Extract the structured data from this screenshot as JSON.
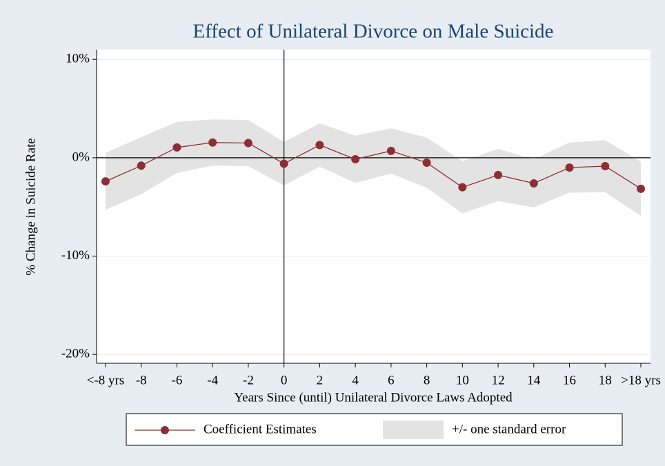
{
  "chart_data": {
    "type": "line",
    "title": "Effect of Unilateral Divorce on Male Suicide",
    "x_label": "Years Since (until) Unilateral Divorce Laws Adopted",
    "y_label": "% Change in Suicide Rate",
    "categories": [
      "<-8 yrs",
      "-8",
      "-6",
      "-4",
      "-2",
      "0",
      "2",
      "4",
      "6",
      "8",
      "10",
      "12",
      "14",
      "16",
      "18",
      ">18 yrs"
    ],
    "series": [
      {
        "name": "Coefficient Estimates",
        "color": "#8f2d36",
        "values": [
          -2.4,
          -0.8,
          1.05,
          1.55,
          1.5,
          -0.6,
          1.3,
          -0.15,
          0.7,
          -0.5,
          -3.0,
          -1.75,
          -2.6,
          -1.0,
          -0.85,
          -3.15
        ]
      },
      {
        "name": "+/- one standard error",
        "type": "band",
        "color": "#e3e3e3",
        "upper": [
          0.5,
          2.1,
          3.65,
          3.9,
          3.85,
          1.6,
          3.5,
          2.25,
          3.0,
          2.05,
          -0.35,
          0.9,
          -0.15,
          1.55,
          1.8,
          -0.4
        ],
        "lower": [
          -5.3,
          -3.7,
          -1.55,
          -0.8,
          -0.85,
          -2.8,
          -0.9,
          -2.55,
          -1.6,
          -3.05,
          -5.65,
          -4.4,
          -5.05,
          -3.55,
          -3.5,
          -5.9
        ]
      }
    ],
    "ylim": [
      -20.9,
      11
    ],
    "yticks": [
      {
        "value": 10,
        "label": "10%"
      },
      {
        "value": 0,
        "label": "0%"
      },
      {
        "value": -10,
        "label": "-10%"
      },
      {
        "value": -20,
        "label": "-20%"
      }
    ],
    "grid": true,
    "yline": 0,
    "xline": "0",
    "legend": "bottom"
  }
}
